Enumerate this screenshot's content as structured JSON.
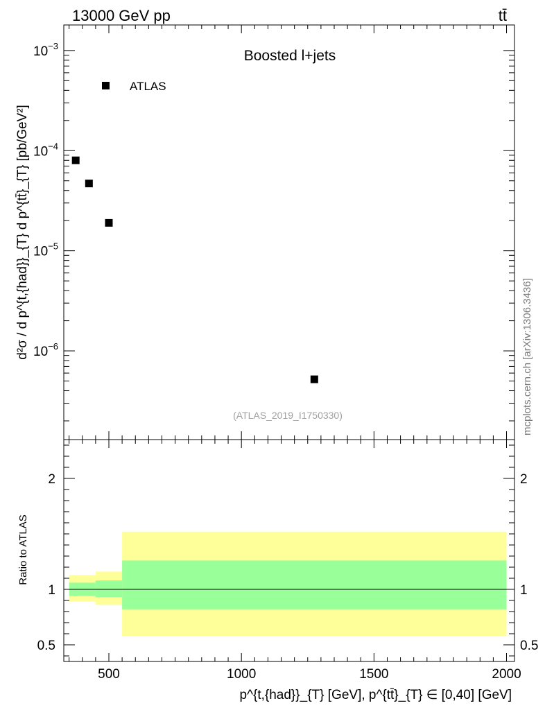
{
  "header": {
    "left": "13000 GeV pp",
    "right": "tt̄"
  },
  "watermark": {
    "side": "mcplots.cern.ch [arXiv:1306.3436]",
    "analysis": "(ATLAS_2019_I1750330)"
  },
  "chart_data": [
    {
      "type": "scatter",
      "title": "Boosted l+jets",
      "ylabel": "d²σ / d p^{t,{had}}_{T} d p^{tt̄}_{T} [pb/GeV²]",
      "xlabel": "p^{t,{had}}_{T} [GeV], p^{tt̄}_{T} ∈ [0,40] [GeV]",
      "xlim": [
        330,
        2030
      ],
      "ylog": true,
      "ylim": [
        1.3e-07,
        0.0018
      ],
      "x_ticks": [
        500,
        1000,
        1500,
        2000
      ],
      "y_tick_labels": [
        "10^-3",
        "10^-4",
        "10^-5",
        "10^-6"
      ],
      "legend_position": "top-left",
      "series": [
        {
          "name": "ATLAS",
          "marker": "square",
          "x": [
            375,
            425,
            500,
            1275
          ],
          "y": [
            8e-05,
            4.7e-05,
            1.9e-05,
            5.2e-07
          ]
        }
      ]
    },
    {
      "type": "area",
      "ylabel": "Ratio to ATLAS",
      "xlim": [
        330,
        2030
      ],
      "ylim": [
        0.35,
        2.35
      ],
      "y_ticks": [
        0.5,
        1,
        2
      ],
      "y_tick_labels": [
        "0.5",
        "1",
        "2"
      ],
      "reference_line": 1,
      "bands": [
        {
          "color": "#ffff99",
          "bins": [
            {
              "xlo": 350,
              "xhi": 450,
              "lo": 0.89,
              "hi": 1.13
            },
            {
              "xlo": 450,
              "xhi": 550,
              "lo": 0.86,
              "hi": 1.16
            },
            {
              "xlo": 550,
              "xhi": 2000,
              "lo": 0.58,
              "hi": 1.52
            }
          ]
        },
        {
          "color": "#99ff99",
          "bins": [
            {
              "xlo": 350,
              "xhi": 450,
              "lo": 0.94,
              "hi": 1.06
            },
            {
              "xlo": 450,
              "xhi": 550,
              "lo": 0.93,
              "hi": 1.08
            },
            {
              "xlo": 550,
              "xhi": 2000,
              "lo": 0.82,
              "hi": 1.26
            }
          ]
        }
      ]
    }
  ]
}
